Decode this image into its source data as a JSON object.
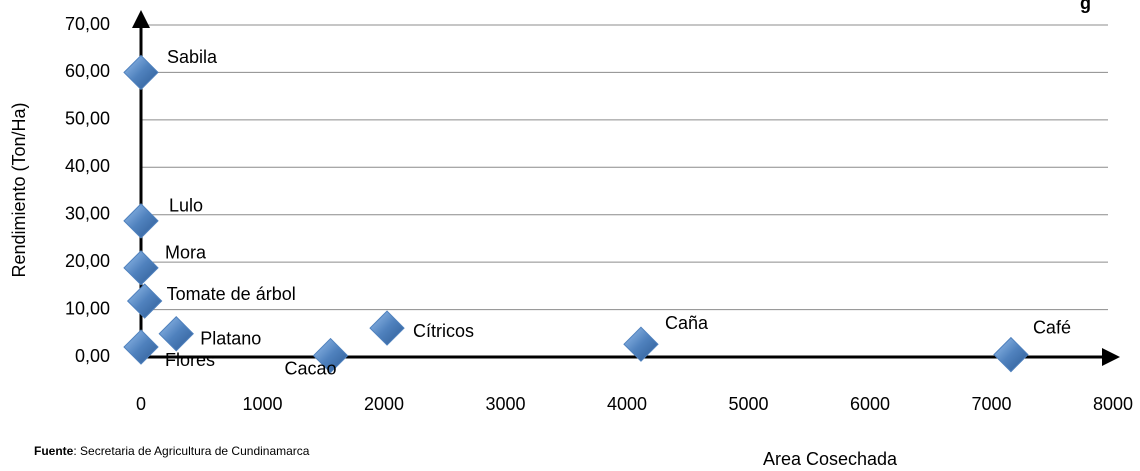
{
  "chart_data": {
    "type": "scatter",
    "title": "g",
    "x_label": "Area Cosechada",
    "y_label": "Rendimiento (Ton/Ha)",
    "labels": [
      "Sabila",
      "Lulo",
      "Mora",
      "Tomate de árbol",
      "Platano",
      "Flores",
      "Cacao",
      "Cítricos",
      "Caña",
      "Café"
    ],
    "x": [
      0,
      0,
      0,
      30,
      290,
      0,
      1560,
      2025,
      4115,
      7160
    ],
    "y": [
      60,
      28.7,
      18.8,
      11.8,
      4.9,
      2.1,
      0.3,
      6.1,
      2.7,
      0.5
    ],
    "color": "#4f81bd",
    "xlim": [
      0,
      8000
    ],
    "xticks": [
      0,
      1000,
      2000,
      3000,
      4000,
      5000,
      6000,
      7000,
      8000
    ],
    "ylim": [
      0,
      70
    ],
    "yticks": [
      {
        "value": 0,
        "label": "0,00"
      },
      {
        "value": 10,
        "label": "10,00"
      },
      {
        "value": 20,
        "label": "20,00"
      },
      {
        "value": 30,
        "label": "30,00"
      },
      {
        "value": 40,
        "label": "40,00"
      },
      {
        "value": 50,
        "label": "50,00"
      },
      {
        "value": 60,
        "label": "60,00"
      },
      {
        "value": 70,
        "label": "70,00"
      }
    ],
    "grid": true,
    "source": {
      "label": "Fuente",
      "text": ": Secretaria de Agricultura de Cundinamarca"
    }
  }
}
